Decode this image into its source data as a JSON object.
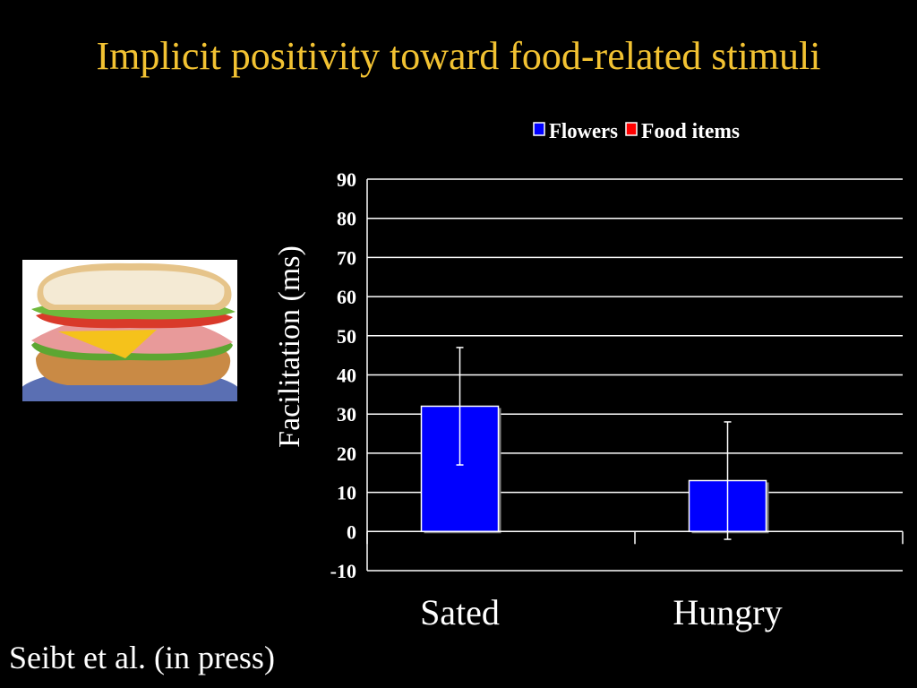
{
  "title": "Implicit positivity toward food-related stimuli",
  "citation": "Seibt et al. (in press)",
  "colors": {
    "title": "#F2C232",
    "flowers": "#0000FF",
    "food": "#FF0000",
    "text": "#FFFFFF",
    "background": "#000000"
  },
  "image": {
    "icon": "sandwich-photo"
  },
  "chart_data": {
    "type": "bar",
    "categories": [
      "Sated",
      "Hungry"
    ],
    "series": [
      {
        "name": "Flowers",
        "color": "#0000FF",
        "values": [
          32,
          13
        ],
        "error_low": [
          17,
          -2
        ],
        "error_high": [
          47,
          28
        ]
      },
      {
        "name": "Food items",
        "color": "#FF0000",
        "values": [
          null,
          null
        ]
      }
    ],
    "ylabel": "Facilitation (ms)",
    "xlabel": "",
    "ylim": [
      -10,
      90
    ],
    "yticks": [
      90,
      80,
      70,
      60,
      50,
      40,
      30,
      20,
      10,
      0,
      -10
    ],
    "grid": true,
    "legend_position": "top"
  }
}
